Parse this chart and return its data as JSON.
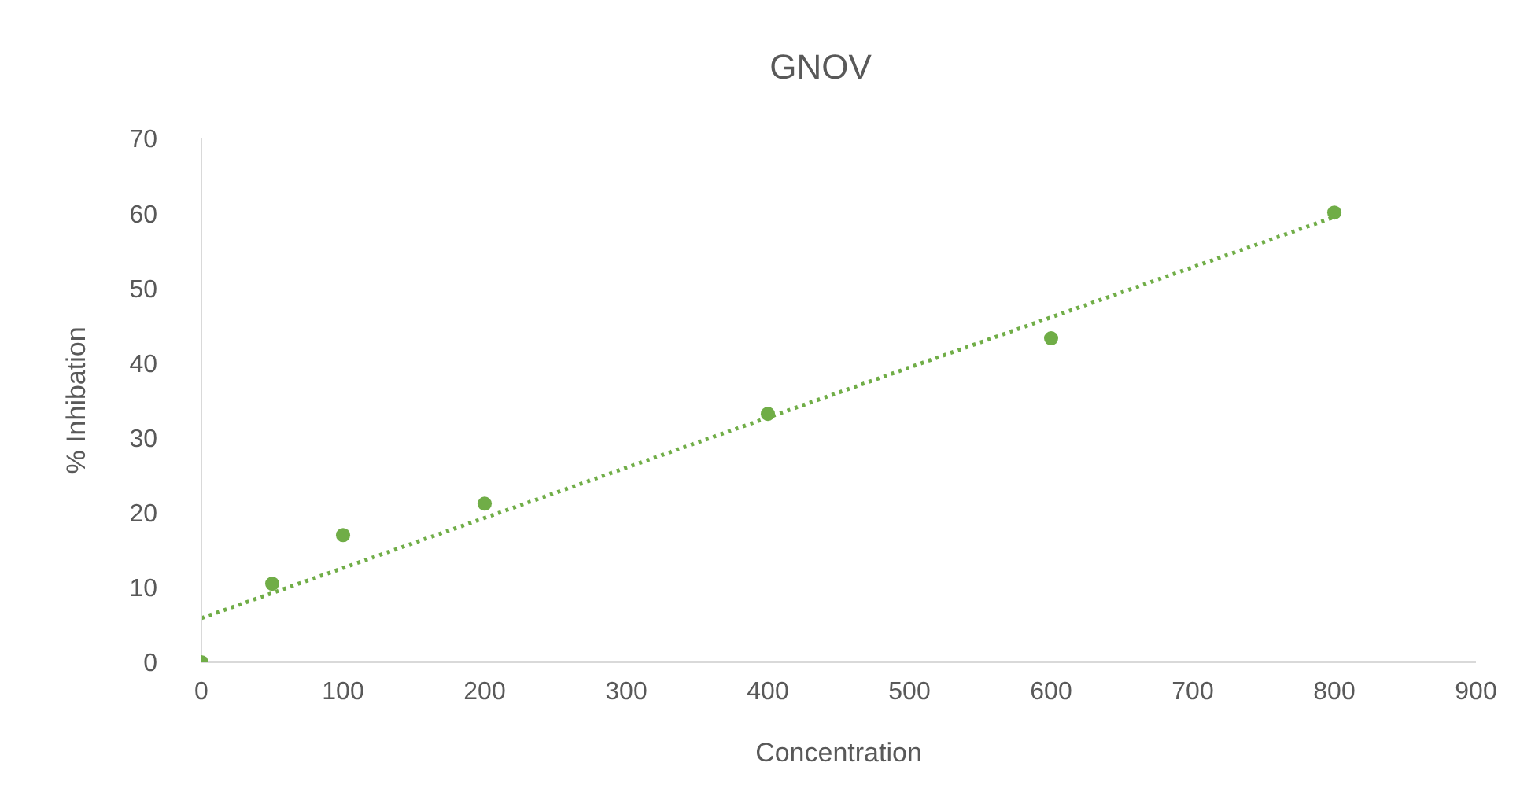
{
  "chart_data": {
    "type": "scatter",
    "title": "GNOV",
    "xlabel": "Concentration",
    "ylabel": "% Inhibation",
    "xlim": [
      0,
      900
    ],
    "xticks": [
      0,
      100,
      200,
      300,
      400,
      500,
      600,
      700,
      800,
      900
    ],
    "ylim": [
      0,
      70
    ],
    "yticks": [
      0,
      10,
      20,
      30,
      40,
      50,
      60,
      70
    ],
    "marker": "circle",
    "series": [
      {
        "color": "#70ad47",
        "x": [
          0,
          50,
          100,
          200,
          400,
          600,
          800
        ],
        "values": [
          0,
          10.5,
          17,
          21.2,
          33.2,
          43.3,
          60.1
        ]
      },
      {
        "type": "line",
        "color": "#70ad47",
        "x": [
          0,
          800
        ],
        "values": [
          5.9,
          59.5
        ],
        "line_style": "dotted",
        "marker": "none"
      }
    ]
  }
}
